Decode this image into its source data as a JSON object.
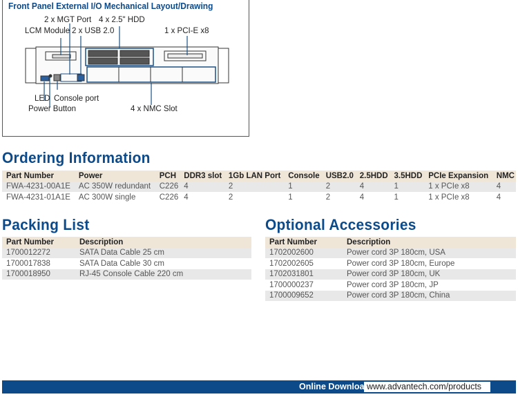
{
  "drawing": {
    "title": "Front Panel External I/O Mechanical Layout/Drawing",
    "labels": {
      "mgt": "2 x MGT Port",
      "hdd": "4 x 2.5\" HDD",
      "lcm": "LCM Module",
      "usb": "2 x USB 2.0",
      "pcie": "1 x PCI-E x8",
      "led": "LED",
      "console": "Console port",
      "power": "Power Button",
      "nmc": "4 x NMC Slot"
    }
  },
  "ordering": {
    "title": "Ordering Information",
    "headers": [
      "Part Number",
      "Power",
      "PCH",
      "DDR3 slot",
      "1Gb LAN Port",
      "Console",
      "USB2.0",
      "2.5HDD",
      "3.5HDD",
      "PCIe Expansion",
      "NMC"
    ],
    "rows": [
      [
        "FWA-4231-00A1E",
        "AC 350W redundant",
        "C226",
        "4",
        "2",
        "1",
        "2",
        "4",
        "1",
        "1 x PCIe x8",
        "4"
      ],
      [
        "FWA-4231-01A1E",
        "AC 300W single",
        "C226",
        "4",
        "2",
        "1",
        "2",
        "4",
        "1",
        "1 x PCIe x8",
        "4"
      ]
    ]
  },
  "packing": {
    "title": "Packing List",
    "headers": [
      "Part Number",
      "Description"
    ],
    "rows": [
      [
        "1700012272",
        "SATA Data Cable 25 cm"
      ],
      [
        "1700017838",
        "SATA Data Cable 30 cm"
      ],
      [
        "1700018950",
        "RJ-45 Console Cable 220 cm"
      ]
    ]
  },
  "accessories": {
    "title": "Optional Accessories",
    "headers": [
      "Part Number",
      "Description"
    ],
    "rows": [
      [
        "1702002600",
        "Power cord 3P 180cm, USA"
      ],
      [
        "1702002605",
        "Power cord 3P 180cm, Europe"
      ],
      [
        "1702031801",
        "Power cord 3P 180cm, UK"
      ],
      [
        "1700000237",
        "Power cord 3P 180cm, JP"
      ],
      [
        "1700009652",
        "Power cord 3P 180cm, China"
      ]
    ]
  },
  "footer": {
    "label": "Online Download",
    "url": "www.advantech.com/products"
  },
  "colors": {
    "brand": "#0d4a8a",
    "header_bg": "#efe6d8",
    "row_alt": "#e8e8e8"
  }
}
